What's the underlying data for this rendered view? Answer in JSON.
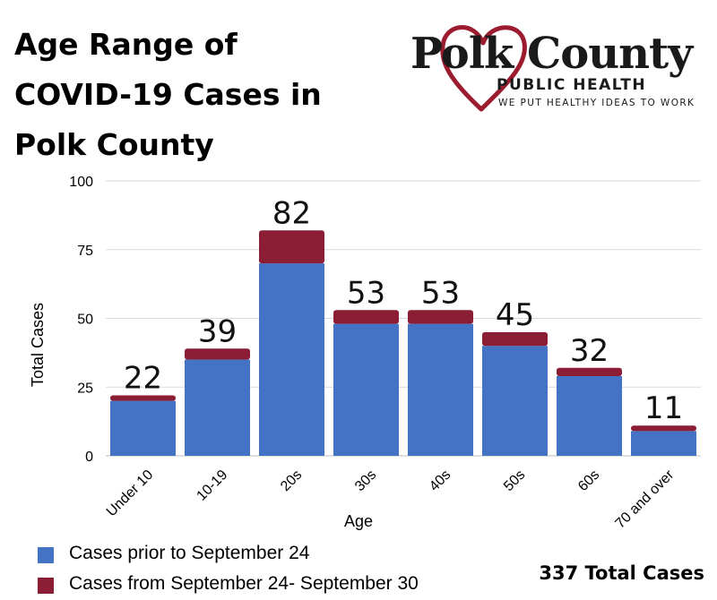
{
  "title_lines": [
    "Age Range of",
    "COVID-19 Cases in",
    "Polk County"
  ],
  "logo": {
    "wordmark": "Polk County",
    "subtitle": "PUBLIC HEALTH",
    "tagline": "WE PUT HEALTHY IDEAS TO WORK",
    "heart_color": "#9b1c2e"
  },
  "total_label": "337 Total Cases",
  "chart_data": {
    "type": "bar",
    "stacked": true,
    "categories": [
      "Under 10",
      "10-19",
      "20s",
      "30s",
      "40s",
      "50s",
      "60s",
      "70 and over"
    ],
    "series": [
      {
        "name": "Cases prior to September 24",
        "color": "#4472c4",
        "values": [
          20,
          35,
          70,
          48,
          48,
          40,
          29,
          9
        ]
      },
      {
        "name": "Cases from September  24- September 30",
        "color": "#8b1d35",
        "values": [
          2,
          4,
          12,
          5,
          5,
          5,
          3,
          2
        ]
      }
    ],
    "totals": [
      22,
      39,
      82,
      53,
      53,
      45,
      32,
      11
    ],
    "xlabel": "Age",
    "ylabel": "Total Cases",
    "ylim": [
      0,
      100
    ],
    "yticks": [
      0,
      25,
      50,
      75,
      100
    ],
    "grid": true,
    "legend_position": "bottom-left"
  }
}
